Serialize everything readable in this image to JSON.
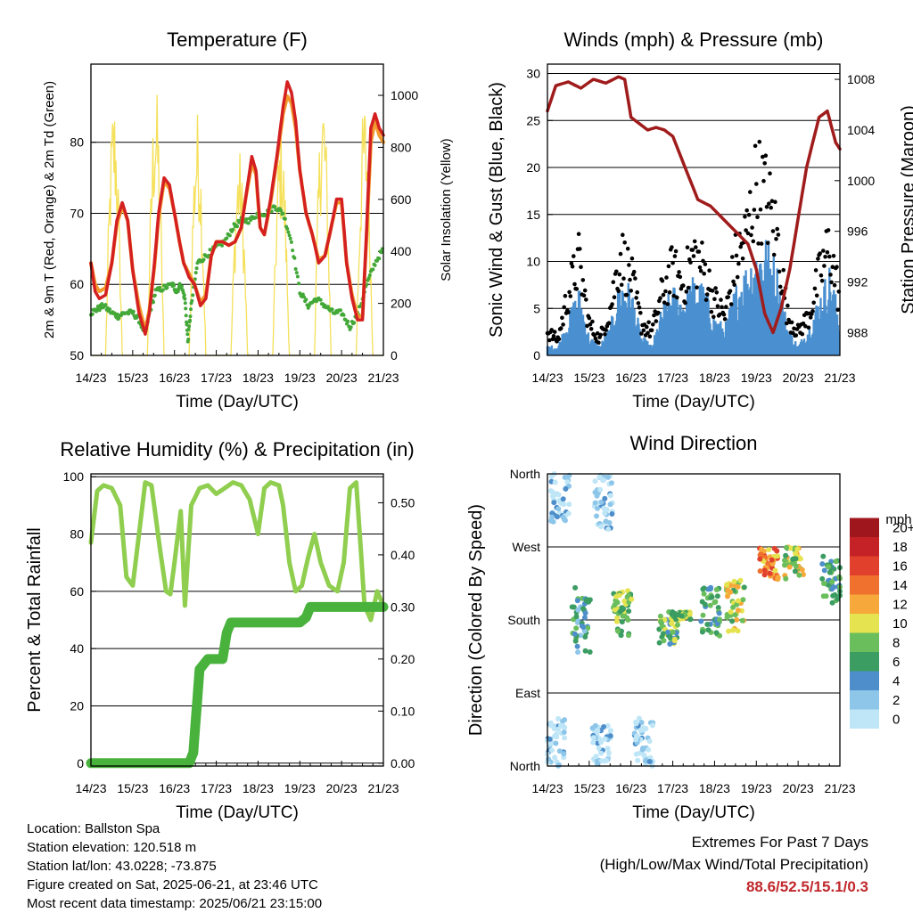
{
  "panels": {
    "temperature": {
      "title": "Temperature (F)",
      "ylabel_left": "2m & 9m T (Red, Orange) & 2m Td (Green)",
      "ylabel_right": "Solar Insolation (Yellow)",
      "xlabel": "Time (Day/UTC)"
    },
    "winds": {
      "title": "Winds (mph) & Pressure (mb)",
      "ylabel_left": "Sonic Wind & Gust (Blue, Black)",
      "ylabel_right": "Station Pressure (Maroon)",
      "xlabel": "Time (Day/UTC)"
    },
    "humidity": {
      "title": "Relative Humidity (%) & Precipitation (in)",
      "ylabel_left": "Percent & Total Rainfall",
      "xlabel": "Time (Day/UTC)"
    },
    "direction": {
      "title": "Wind Direction",
      "ylabel_left": "Direction (Colored By Speed)",
      "xlabel": "Time (Day/UTC)"
    }
  },
  "info": {
    "location": "Location: Ballston Spa",
    "elevation": "Station elevation: 120.518 m",
    "latlon": "Station lat/lon: 43.0228; -73.875",
    "created": "Figure created on Sat, 2025-06-21, at 23:46 UTC",
    "latest": "Most recent data timestamp: 2025/06/21 23:15:00"
  },
  "extremes": {
    "line1": "Extremes For Past 7 Days",
    "line2": "(High/Low/Max Wind/Total Precipitation)",
    "value": "88.6/52.5/15.1/0.3"
  },
  "chart_data": [
    {
      "id": "temperature",
      "type": "line",
      "title": "Temperature (F)",
      "x_ticks": [
        "14/23",
        "15/23",
        "16/23",
        "17/23",
        "18/23",
        "19/23",
        "20/23",
        "21/23"
      ],
      "x_unit": "days since 14/23 UTC",
      "y_left": {
        "label": "2m & 9m T (Red, Orange) & 2m Td (Green)",
        "range": [
          50,
          91
        ],
        "ticks": [
          50,
          60,
          70,
          80
        ]
      },
      "y_right": {
        "label": "Solar Insolation (Yellow)",
        "range": [
          0,
          1120
        ],
        "ticks": [
          0,
          200,
          400,
          600,
          800,
          1000
        ]
      },
      "series": [
        {
          "color": "#d42020",
          "axis": "left",
          "x": [
            0,
            0.1,
            0.2,
            0.35,
            0.5,
            0.62,
            0.75,
            0.88,
            1.0,
            1.15,
            1.3,
            1.4,
            1.52,
            1.62,
            1.75,
            1.88,
            2.0,
            2.12,
            2.22,
            2.35,
            2.48,
            2.62,
            2.75,
            2.88,
            3.0,
            3.15,
            3.3,
            3.45,
            3.6,
            3.7,
            3.85,
            3.95,
            4.05,
            4.15,
            4.3,
            4.45,
            4.6,
            4.7,
            4.8,
            4.9,
            5.0,
            5.15,
            5.3,
            5.45,
            5.6,
            5.75,
            5.88,
            6.0,
            6.12,
            6.25,
            6.38,
            6.5,
            6.6,
            6.7,
            6.8,
            6.9,
            7.0
          ],
          "y": [
            63,
            59,
            58,
            58.5,
            63,
            69,
            71.5,
            69,
            62,
            56,
            53,
            56,
            63,
            70,
            75,
            74,
            70,
            66,
            63,
            61,
            60,
            57,
            58,
            64,
            66,
            66,
            65.5,
            66,
            68,
            72,
            78,
            76,
            68,
            67,
            72,
            78,
            85,
            88.5,
            87,
            83,
            76,
            70,
            67,
            63,
            64,
            68,
            72,
            72,
            63,
            58,
            55,
            55,
            68,
            82,
            84,
            82,
            81
          ]
        },
        {
          "color": "#f39a2c",
          "axis": "left",
          "x": [
            0,
            0.1,
            0.2,
            0.35,
            0.5,
            0.62,
            0.75,
            0.88,
            1.0,
            1.15,
            1.3,
            1.4,
            1.52,
            1.62,
            1.75,
            1.88,
            2.0,
            2.12,
            2.22,
            2.35,
            2.48,
            2.62,
            2.75,
            2.88,
            3.0,
            3.15,
            3.3,
            3.45,
            3.6,
            3.7,
            3.85,
            3.95,
            4.05,
            4.15,
            4.3,
            4.45,
            4.6,
            4.7,
            4.8,
            4.9,
            5.0,
            5.15,
            5.3,
            5.45,
            5.6,
            5.75,
            5.88,
            6.0,
            6.12,
            6.25,
            6.38,
            6.5,
            6.6,
            6.7,
            6.8,
            6.9,
            7.0
          ],
          "y": [
            63,
            60,
            59,
            59.5,
            63,
            68.5,
            71,
            69,
            62,
            57,
            53.5,
            56.5,
            62.5,
            69.5,
            74.5,
            73.5,
            70,
            66,
            63,
            61.5,
            60,
            57.5,
            58.5,
            64,
            66,
            66,
            65.5,
            66,
            68,
            72,
            77,
            75.5,
            68,
            67,
            71.5,
            77.5,
            84,
            86.5,
            85.5,
            82,
            76,
            70,
            67,
            63.5,
            64,
            68,
            71.5,
            71.5,
            63,
            58.5,
            55.5,
            55.5,
            67,
            80,
            83,
            81,
            80
          ]
        },
        {
          "color": "#43a838",
          "axis": "left",
          "x": [
            0,
            0.15,
            0.3,
            0.5,
            0.65,
            0.8,
            1.0,
            1.15,
            1.3,
            1.4,
            1.55,
            1.75,
            1.95,
            2.05,
            2.15,
            2.25,
            2.32,
            2.4,
            2.55,
            2.75,
            2.95,
            3.2,
            3.4,
            3.6,
            3.8,
            4.0,
            4.2,
            4.4,
            4.6,
            4.8,
            5.0,
            5.2,
            5.4,
            5.6,
            5.8,
            6.0,
            6.2,
            6.4,
            6.6,
            6.8,
            7.0
          ],
          "y": [
            56,
            56.5,
            57,
            56,
            55.5,
            56,
            56,
            55,
            53,
            56,
            59,
            59.5,
            60,
            59,
            60,
            58,
            52,
            57,
            63,
            64,
            65,
            66,
            68,
            69,
            69,
            70,
            70,
            71,
            70,
            66,
            59,
            57,
            58,
            57,
            56,
            56,
            54,
            56,
            60,
            63,
            65
          ]
        },
        {
          "color": "#f5e05a",
          "axis": "right",
          "note": "daily solar insolation peaks (W/m2)",
          "x": [
            0.5,
            1.0,
            1.5,
            2.0,
            2.5,
            3.0,
            3.5,
            4.0,
            4.5,
            5.0,
            5.5,
            6.0,
            6.5,
            7.0
          ],
          "y": [
            1000,
            0,
            1050,
            0,
            950,
            0,
            800,
            0,
            900,
            0,
            1050,
            0,
            1000,
            0
          ]
        }
      ]
    },
    {
      "id": "winds",
      "type": "scatter",
      "title": "Winds (mph) & Pressure (mb)",
      "x_ticks": [
        "14/23",
        "15/23",
        "16/23",
        "17/23",
        "18/23",
        "19/23",
        "20/23",
        "21/23"
      ],
      "x_unit": "days since 14/23 UTC",
      "y_left": {
        "label": "Sonic Wind & Gust (Blue, Black)",
        "range": [
          0,
          31
        ],
        "ticks": [
          0,
          5,
          10,
          15,
          20,
          25,
          30
        ]
      },
      "y_right": {
        "label": "Station Pressure (Maroon)",
        "range": [
          986.2,
          1009.2
        ],
        "ticks": [
          988,
          992,
          996,
          1000,
          1004,
          1008
        ]
      },
      "series": [
        {
          "name": "gust",
          "color": "#000000",
          "axis": "left",
          "x": [
            0,
            0.25,
            0.5,
            0.75,
            1.0,
            1.25,
            1.5,
            1.75,
            2.0,
            2.25,
            2.5,
            2.75,
            3.0,
            3.25,
            3.5,
            3.75,
            4.0,
            4.25,
            4.5,
            4.75,
            5.0,
            5.25,
            5.5,
            5.75,
            6.0,
            6.25,
            6.5,
            6.75,
            7.0
          ],
          "y": [
            3,
            2,
            8,
            12,
            4,
            2,
            6,
            13,
            10,
            4,
            3,
            8,
            11,
            9,
            13,
            11,
            7,
            5,
            12,
            15,
            22,
            20,
            15,
            5,
            3,
            5,
            10,
            14,
            7
          ]
        },
        {
          "name": "wind",
          "color": "#4a90d0",
          "axis": "left",
          "x": [
            0,
            0.25,
            0.5,
            0.75,
            1.0,
            1.25,
            1.5,
            1.75,
            2.0,
            2.25,
            2.5,
            2.75,
            3.0,
            3.25,
            3.5,
            3.75,
            4.0,
            4.25,
            4.5,
            4.75,
            5.0,
            5.25,
            5.5,
            5.75,
            6.0,
            6.25,
            6.5,
            6.75,
            7.0
          ],
          "y": [
            1,
            1,
            4,
            7,
            2,
            1,
            3,
            8,
            7,
            2,
            1,
            5,
            7,
            6,
            8,
            7,
            4,
            3,
            7,
            9,
            11,
            12,
            9,
            3,
            1,
            3,
            6,
            9,
            4
          ]
        },
        {
          "name": "pressure",
          "color": "#a01c1c",
          "axis": "right",
          "x": [
            0,
            0.2,
            0.5,
            0.8,
            1.1,
            1.4,
            1.7,
            1.85,
            2.0,
            2.2,
            2.4,
            2.6,
            2.8,
            3.0,
            3.3,
            3.6,
            3.9,
            4.2,
            4.5,
            4.8,
            5.0,
            5.2,
            5.4,
            5.6,
            5.8,
            6.0,
            6.2,
            6.5,
            6.7,
            6.9,
            7.0
          ],
          "y": [
            1005.5,
            1007.5,
            1007.8,
            1007.3,
            1008,
            1007.7,
            1008.2,
            1008,
            1005,
            1004.5,
            1004,
            1004.2,
            1004,
            1003.5,
            1001,
            998.5,
            998,
            997,
            996,
            995,
            993,
            989.5,
            988,
            990,
            993,
            997,
            1001,
            1005,
            1005.5,
            1003,
            1002.5
          ]
        }
      ]
    },
    {
      "id": "humidity",
      "type": "line",
      "title": "Relative Humidity (%) & Precipitation (in)",
      "x_ticks": [
        "14/23",
        "15/23",
        "16/23",
        "17/23",
        "18/23",
        "19/23",
        "20/23",
        "21/23"
      ],
      "x_unit": "days since 14/23 UTC",
      "y_left": {
        "label": "Percent & Total Rainfall",
        "range": [
          -1,
          101
        ],
        "ticks": [
          0,
          20,
          40,
          60,
          80,
          100
        ]
      },
      "y_right": {
        "range": [
          -0.0055,
          0.5555
        ],
        "ticks": [
          "0.00",
          "0.10",
          "0.20",
          "0.30",
          "0.40",
          "0.50"
        ]
      },
      "series": [
        {
          "color": "#8fce4f",
          "axis": "left",
          "x": [
            0,
            0.15,
            0.3,
            0.5,
            0.7,
            0.85,
            1.0,
            1.15,
            1.3,
            1.45,
            1.65,
            1.8,
            1.9,
            2.0,
            2.15,
            2.25,
            2.4,
            2.6,
            2.8,
            3.0,
            3.2,
            3.4,
            3.6,
            3.8,
            4.0,
            4.15,
            4.3,
            4.5,
            4.6,
            4.75,
            4.9,
            5.05,
            5.2,
            5.35,
            5.5,
            5.7,
            5.9,
            6.05,
            6.2,
            6.35,
            6.55,
            6.7,
            6.85,
            7.0
          ],
          "y": [
            77,
            95,
            97,
            96,
            90,
            65,
            62,
            80,
            98,
            97,
            75,
            60,
            59,
            70,
            88,
            55,
            90,
            96,
            97,
            94,
            96,
            98,
            97,
            92,
            80,
            96,
            98,
            97,
            90,
            70,
            60,
            62,
            72,
            80,
            70,
            62,
            60,
            70,
            96,
            98,
            55,
            50,
            60,
            55
          ]
        },
        {
          "color": "#48b23c",
          "axis": "right",
          "x": [
            0,
            1,
            2,
            2.35,
            2.45,
            2.6,
            2.8,
            3.0,
            3.15,
            3.25,
            3.35,
            3.6,
            4.0,
            4.5,
            4.75,
            5.0,
            5.15,
            5.25,
            5.5,
            6.0,
            6.5,
            7.0
          ],
          "y": [
            0,
            0,
            0,
            0,
            0.02,
            0.18,
            0.2,
            0.2,
            0.2,
            0.25,
            0.27,
            0.27,
            0.27,
            0.27,
            0.27,
            0.27,
            0.28,
            0.3,
            0.3,
            0.3,
            0.3,
            0.3
          ]
        }
      ]
    },
    {
      "id": "direction",
      "type": "scatter",
      "title": "Wind Direction",
      "x_ticks": [
        "14/23",
        "15/23",
        "16/23",
        "17/23",
        "18/23",
        "19/23",
        "20/23",
        "21/23"
      ],
      "x_unit": "days since 14/23 UTC",
      "y_left": {
        "label": "Direction (Colored By Speed)",
        "range": [
          0,
          360
        ],
        "ticks": [
          "North",
          "East",
          "South",
          "West",
          "North"
        ]
      },
      "colorbar": {
        "unit": "mph",
        "levels": [
          "0",
          "2",
          "4",
          "6",
          "8",
          "10",
          "12",
          "14",
          "16",
          "18",
          "20+"
        ],
        "colors": [
          "#bfe6f7",
          "#8ec6ea",
          "#4e8fcb",
          "#3b9d62",
          "#6abe5c",
          "#e6e350",
          "#f6a83a",
          "#f0702e",
          "#e0402c",
          "#c42226",
          "#a0161d"
        ]
      },
      "clusters": [
        {
          "day": 0.2,
          "dir_low": 0,
          "dir_high": 60,
          "speed": 1
        },
        {
          "day": 0.3,
          "dir_low": 300,
          "dir_high": 360,
          "speed": 1
        },
        {
          "day": 0.8,
          "dir_low": 140,
          "dir_high": 220,
          "speed": 5
        },
        {
          "day": 1.3,
          "dir_low": 0,
          "dir_high": 50,
          "speed": 1
        },
        {
          "day": 1.35,
          "dir_low": 290,
          "dir_high": 360,
          "speed": 1
        },
        {
          "day": 1.8,
          "dir_low": 160,
          "dir_high": 220,
          "speed": 8
        },
        {
          "day": 2.3,
          "dir_low": 0,
          "dir_high": 60,
          "speed": 1
        },
        {
          "day": 2.9,
          "dir_low": 150,
          "dir_high": 190,
          "speed": 7
        },
        {
          "day": 3.2,
          "dir_low": 180,
          "dir_high": 190,
          "speed": 8
        },
        {
          "day": 3.9,
          "dir_low": 160,
          "dir_high": 220,
          "speed": 6
        },
        {
          "day": 4.5,
          "dir_low": 160,
          "dir_high": 230,
          "speed": 9
        },
        {
          "day": 5.3,
          "dir_low": 230,
          "dir_high": 270,
          "speed": 13
        },
        {
          "day": 5.9,
          "dir_low": 230,
          "dir_high": 270,
          "speed": 9
        },
        {
          "day": 6.8,
          "dir_low": 200,
          "dir_high": 260,
          "speed": 6
        }
      ]
    }
  ]
}
